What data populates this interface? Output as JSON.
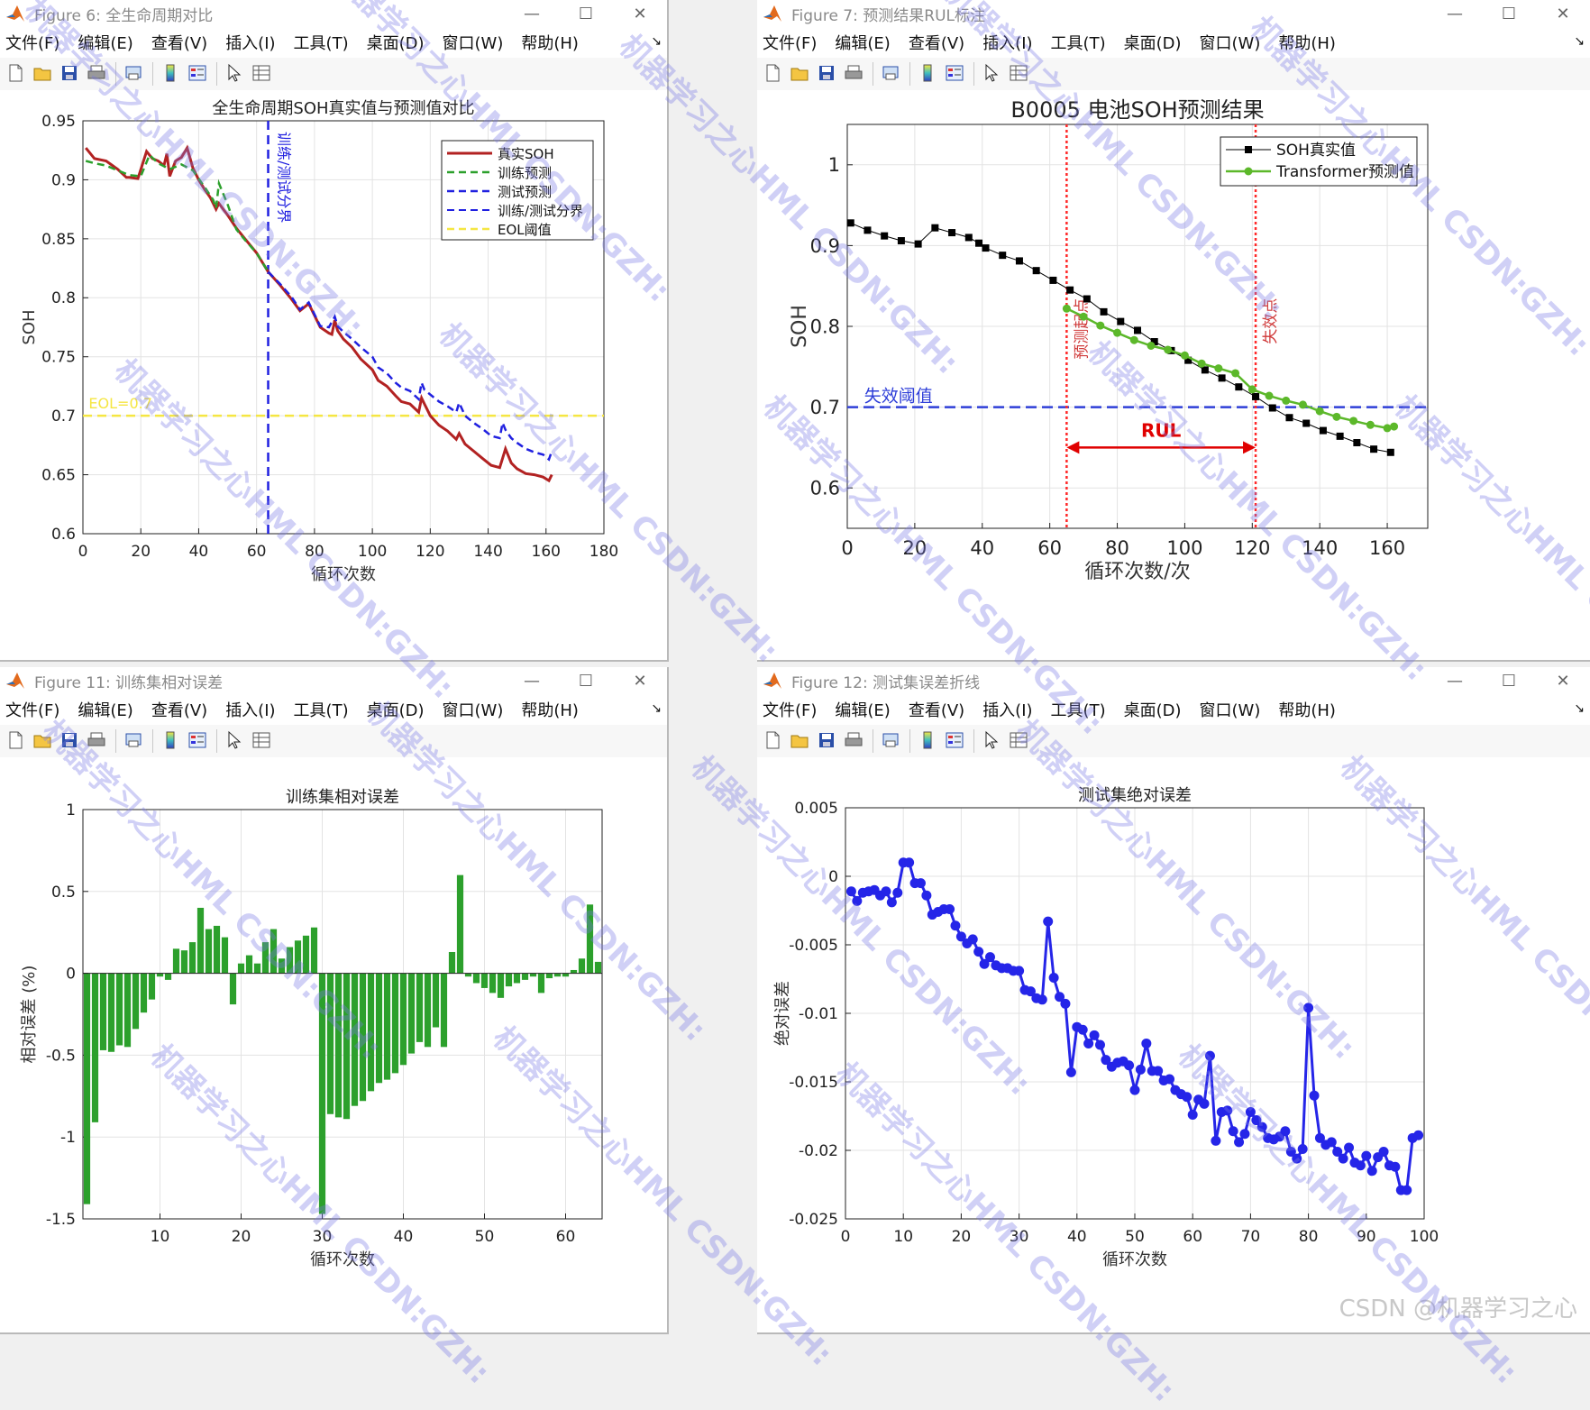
{
  "menu": [
    "文件(F)",
    "编辑(E)",
    "查看(V)",
    "插入(I)",
    "工具(T)",
    "桌面(D)",
    "窗口(W)",
    "帮助(H)"
  ],
  "toolbar_icons": [
    "new-file-icon",
    "open-folder-icon",
    "save-icon",
    "print-icon",
    "print-preview-icon",
    "colorbar-icon",
    "legend-icon",
    "pointer-icon",
    "property-inspector-icon"
  ],
  "window_controls": [
    "minimize-icon",
    "maximize-icon",
    "close-icon"
  ],
  "windows": {
    "fig6": {
      "title": "Figure 6: 全生命周期对比"
    },
    "fig7": {
      "title": "Figure 7: 预测结果RUL标注"
    },
    "fig11": {
      "title": "Figure 11: 训练集相对误差"
    },
    "fig12": {
      "title": "Figure 12: 测试集误差折线"
    }
  },
  "watermark": "机器学习之心HML CSDN:GZH:",
  "footer": "CSDN @机器学习之心",
  "chart_data": [
    {
      "id": "fig6",
      "type": "line",
      "title": "全生命周期SOH真实值与预测值对比",
      "xlabel": "循环次数",
      "ylabel": "SOH",
      "xlim": [
        0,
        180
      ],
      "ylim": [
        0.6,
        0.95
      ],
      "xticks": [
        0,
        20,
        40,
        60,
        80,
        100,
        120,
        140,
        160,
        180
      ],
      "yticks": [
        0.6,
        0.65,
        0.7,
        0.75,
        0.8,
        0.85,
        0.9,
        0.95
      ],
      "colors": {
        "true": "#b22222",
        "train": "#2ca02c",
        "test": "#2020e0",
        "boundary": "#2020e0",
        "eol": "#f5e642"
      },
      "legend": [
        "真实SOH",
        "训练预测",
        "测试预测",
        "训练/测试分界",
        "EOL阈值"
      ],
      "legend_loc": "top-right",
      "boundary_x": 64,
      "boundary_label": "训练/测试分界",
      "eol": 0.7,
      "eol_label": "EOL=0.7",
      "true_x": [
        1,
        4,
        8,
        12,
        15,
        16,
        19,
        22,
        24,
        26,
        28,
        29,
        30,
        32,
        34,
        36,
        38,
        40,
        42,
        44,
        45,
        46,
        47,
        50,
        53,
        56,
        60,
        64,
        68,
        72,
        75,
        78,
        80,
        82,
        85,
        86,
        87,
        88,
        90,
        93,
        96,
        100,
        102,
        105,
        108,
        110,
        113,
        116,
        117,
        118,
        119,
        120,
        123,
        126,
        129,
        130,
        132,
        135,
        138,
        141,
        144,
        145,
        146,
        148,
        150,
        153,
        156,
        159,
        161,
        162
      ],
      "true_y": [
        0.927,
        0.918,
        0.916,
        0.909,
        0.902,
        0.902,
        0.901,
        0.924,
        0.918,
        0.916,
        0.912,
        0.922,
        0.903,
        0.916,
        0.919,
        0.927,
        0.91,
        0.9,
        0.892,
        0.885,
        0.88,
        0.875,
        0.88,
        0.87,
        0.859,
        0.85,
        0.838,
        0.822,
        0.811,
        0.799,
        0.789,
        0.795,
        0.785,
        0.775,
        0.77,
        0.769,
        0.781,
        0.772,
        0.765,
        0.758,
        0.748,
        0.739,
        0.73,
        0.725,
        0.717,
        0.712,
        0.71,
        0.703,
        0.715,
        0.71,
        0.705,
        0.7,
        0.692,
        0.687,
        0.68,
        0.685,
        0.676,
        0.67,
        0.664,
        0.658,
        0.656,
        0.664,
        0.672,
        0.66,
        0.655,
        0.651,
        0.65,
        0.648,
        0.645,
        0.65
      ],
      "train_x": [
        1,
        4,
        8,
        12,
        16,
        20,
        23,
        26,
        30,
        34,
        38,
        42,
        45,
        46,
        47,
        50,
        53,
        56,
        60,
        64
      ],
      "train_y": [
        0.916,
        0.914,
        0.912,
        0.908,
        0.904,
        0.903,
        0.921,
        0.914,
        0.909,
        0.913,
        0.908,
        0.894,
        0.883,
        0.876,
        0.897,
        0.879,
        0.858,
        0.849,
        0.838,
        0.822
      ],
      "test_x": [
        64,
        68,
        72,
        75,
        78,
        82,
        85,
        87,
        88,
        90,
        93,
        96,
        100,
        102,
        105,
        108,
        110,
        113,
        116,
        117,
        118,
        120,
        123,
        126,
        129,
        130,
        132,
        135,
        138,
        141,
        144,
        145,
        146,
        148,
        150,
        153,
        156,
        159,
        161,
        162
      ],
      "test_y": [
        0.822,
        0.812,
        0.801,
        0.79,
        0.796,
        0.776,
        0.775,
        0.784,
        0.776,
        0.771,
        0.765,
        0.758,
        0.75,
        0.741,
        0.736,
        0.728,
        0.724,
        0.721,
        0.714,
        0.728,
        0.722,
        0.718,
        0.712,
        0.708,
        0.703,
        0.711,
        0.7,
        0.694,
        0.689,
        0.683,
        0.681,
        0.694,
        0.688,
        0.681,
        0.677,
        0.672,
        0.669,
        0.667,
        0.663,
        0.67
      ]
    },
    {
      "id": "fig7",
      "type": "line",
      "title": "B0005 电池SOH预测结果",
      "xlabel": "循环次数/次",
      "ylabel": "SOH",
      "xlim": [
        0,
        172
      ],
      "ylim": [
        0.55,
        1.05
      ],
      "xticks": [
        0,
        20,
        40,
        60,
        80,
        100,
        120,
        140,
        160
      ],
      "yticks": [
        0.6,
        0.7,
        0.8,
        0.9,
        1
      ],
      "colors": {
        "true": "#000000",
        "pred": "#5cb82a",
        "threshold": "#2f3fd8",
        "marker_line": "#ff2a2a",
        "rul": "#e00000"
      },
      "legend": [
        "SOH真实值",
        "Transformer预测值"
      ],
      "legend_loc": "top-right",
      "threshold": 0.7,
      "threshold_label": "失效阈值",
      "start_x": 65,
      "start_label": "预测起点",
      "fail_x": 121,
      "fail_label": "失效点",
      "rul_label": "RUL",
      "true_x": [
        1,
        6,
        11,
        16,
        21,
        26,
        31,
        36,
        39,
        41,
        46,
        51,
        56,
        61,
        66,
        71,
        76,
        81,
        86,
        91,
        96,
        101,
        106,
        111,
        116,
        121,
        126,
        131,
        136,
        141,
        146,
        151,
        156,
        161
      ],
      "true_y": [
        0.928,
        0.919,
        0.912,
        0.906,
        0.902,
        0.922,
        0.916,
        0.91,
        0.903,
        0.897,
        0.888,
        0.881,
        0.869,
        0.857,
        0.845,
        0.834,
        0.818,
        0.806,
        0.795,
        0.781,
        0.77,
        0.758,
        0.746,
        0.736,
        0.725,
        0.713,
        0.699,
        0.687,
        0.68,
        0.671,
        0.664,
        0.656,
        0.648,
        0.644
      ],
      "pred_x": [
        65,
        70,
        75,
        80,
        85,
        90,
        95,
        100,
        105,
        110,
        115,
        120,
        125,
        130,
        135,
        140,
        145,
        150,
        155,
        160,
        162
      ],
      "pred_y": [
        0.822,
        0.812,
        0.801,
        0.792,
        0.783,
        0.776,
        0.771,
        0.764,
        0.754,
        0.748,
        0.742,
        0.722,
        0.714,
        0.708,
        0.703,
        0.695,
        0.688,
        0.683,
        0.678,
        0.674,
        0.676
      ]
    },
    {
      "id": "fig11",
      "type": "bar",
      "title": "训练集相对误差",
      "xlabel": "循环次数",
      "ylabel": "相对误差 (%)",
      "xlim": [
        1,
        64
      ],
      "ylim": [
        -1.5,
        1
      ],
      "xticks": [
        10,
        20,
        30,
        40,
        50,
        60
      ],
      "yticks": [
        -1.5,
        -1,
        -0.5,
        0,
        0.5,
        1
      ],
      "colors": {
        "bar": "#2ca02c"
      },
      "x": [
        1,
        2,
        3,
        4,
        5,
        6,
        7,
        8,
        9,
        10,
        11,
        12,
        13,
        14,
        15,
        16,
        17,
        18,
        19,
        20,
        21,
        22,
        23,
        24,
        25,
        26,
        27,
        28,
        29,
        30,
        31,
        32,
        33,
        34,
        35,
        36,
        37,
        38,
        39,
        40,
        41,
        42,
        43,
        44,
        45,
        46,
        47,
        48,
        49,
        50,
        51,
        52,
        53,
        54,
        55,
        56,
        57,
        58,
        59,
        60,
        61,
        62,
        63,
        64
      ],
      "values": [
        -1.41,
        -0.91,
        -0.47,
        -0.48,
        -0.44,
        -0.45,
        -0.34,
        -0.24,
        -0.16,
        -0.02,
        -0.04,
        0.15,
        0.14,
        0.19,
        0.4,
        0.27,
        0.29,
        0.22,
        -0.19,
        0.06,
        0.11,
        0.06,
        0.19,
        0.27,
        0.09,
        0.16,
        0.2,
        0.23,
        0.28,
        -1.47,
        -0.86,
        -0.88,
        -0.89,
        -0.81,
        -0.78,
        -0.72,
        -0.67,
        -0.65,
        -0.61,
        -0.56,
        -0.49,
        -0.42,
        -0.45,
        -0.33,
        -0.45,
        0.13,
        0.6,
        -0.02,
        -0.06,
        -0.09,
        -0.12,
        -0.15,
        -0.08,
        -0.06,
        -0.04,
        -0.02,
        -0.12,
        -0.03,
        -0.02,
        -0.02,
        0.02,
        0.09,
        0.42,
        0.07
      ]
    },
    {
      "id": "fig12",
      "type": "line",
      "title": "测试集绝对误差",
      "xlabel": "循环次数",
      "ylabel": "绝对误差",
      "xlim": [
        0,
        100
      ],
      "ylim": [
        -0.025,
        0.005
      ],
      "xticks": [
        0,
        10,
        20,
        30,
        40,
        50,
        60,
        70,
        80,
        90,
        100
      ],
      "yticks": [
        -0.025,
        -0.02,
        -0.015,
        -0.01,
        -0.005,
        0,
        0.005
      ],
      "colors": {
        "line": "#2525e8"
      },
      "x": [
        1,
        2,
        3,
        4,
        5,
        6,
        7,
        8,
        9,
        10,
        11,
        12,
        13,
        14,
        15,
        16,
        17,
        18,
        19,
        20,
        21,
        22,
        23,
        24,
        25,
        26,
        27,
        28,
        29,
        30,
        31,
        32,
        33,
        34,
        35,
        36,
        37,
        38,
        39,
        40,
        41,
        42,
        43,
        44,
        45,
        46,
        47,
        48,
        49,
        50,
        51,
        52,
        53,
        54,
        55,
        56,
        57,
        58,
        59,
        60,
        61,
        62,
        63,
        64,
        65,
        66,
        67,
        68,
        69,
        70,
        71,
        72,
        73,
        74,
        75,
        76,
        77,
        78,
        79,
        80,
        81,
        82,
        83,
        84,
        85,
        86,
        87,
        88,
        89,
        90,
        91,
        92,
        93,
        94,
        95,
        96,
        97,
        98,
        99
      ],
      "y": [
        -0.0011,
        -0.0018,
        -0.0012,
        -0.0011,
        -0.001,
        -0.0014,
        -0.0011,
        -0.0019,
        -0.0012,
        0.001,
        0.001,
        -0.0005,
        -0.0005,
        -0.0014,
        -0.0028,
        -0.0026,
        -0.0024,
        -0.0024,
        -0.0036,
        -0.0044,
        -0.0049,
        -0.0046,
        -0.0055,
        -0.0064,
        -0.0059,
        -0.0065,
        -0.0067,
        -0.0067,
        -0.0069,
        -0.0069,
        -0.0083,
        -0.0084,
        -0.0089,
        -0.009,
        -0.0033,
        -0.0074,
        -0.0088,
        -0.0093,
        -0.0143,
        -0.011,
        -0.0112,
        -0.0122,
        -0.0116,
        -0.0123,
        -0.0134,
        -0.0139,
        -0.0136,
        -0.0135,
        -0.0138,
        -0.0156,
        -0.0141,
        -0.0122,
        -0.0142,
        -0.0142,
        -0.0149,
        -0.0148,
        -0.0156,
        -0.0159,
        -0.0161,
        -0.0174,
        -0.0163,
        -0.0166,
        -0.0131,
        -0.0193,
        -0.0172,
        -0.0171,
        -0.0186,
        -0.0194,
        -0.0188,
        -0.0172,
        -0.0178,
        -0.0183,
        -0.0191,
        -0.0192,
        -0.019,
        -0.0186,
        -0.0201,
        -0.0206,
        -0.0199,
        -0.0096,
        -0.016,
        -0.0191,
        -0.0196,
        -0.0194,
        -0.0201,
        -0.0206,
        -0.0198,
        -0.0209,
        -0.0211,
        -0.0204,
        -0.0215,
        -0.0205,
        -0.0201,
        -0.0211,
        -0.0212,
        -0.0229,
        -0.0229,
        -0.0191,
        -0.0189
      ]
    }
  ]
}
